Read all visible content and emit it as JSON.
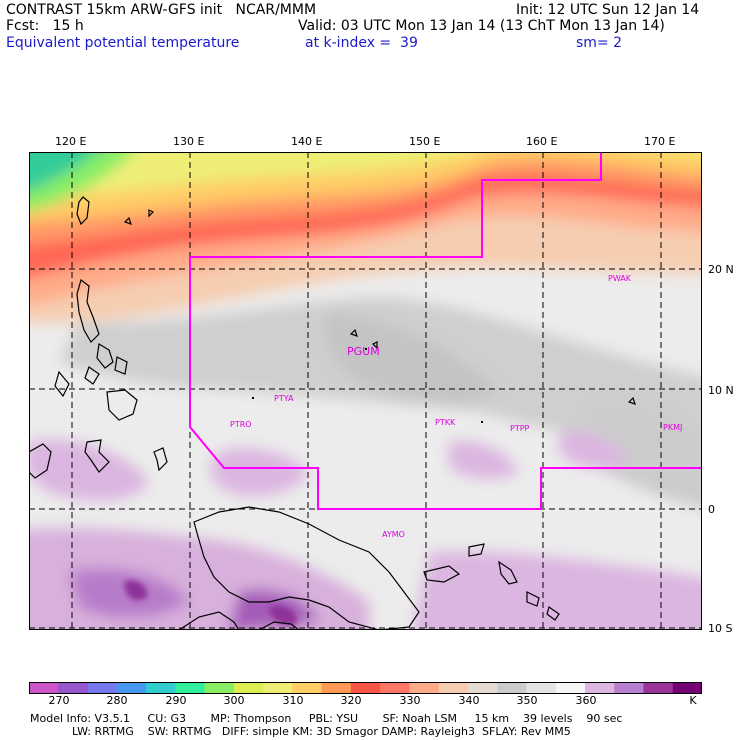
{
  "header": {
    "left1": "CONTRAST 15km ARW-GFS init   NCAR/MMM",
    "right1": "Init: 12 UTC Sun 12 Jan 14",
    "left2": "Fcst:   15 h",
    "right2": "Valid: 03 UTC Mon 13 Jan 14 (13 ChT Mon 13 Jan 14)",
    "field": "Equivalent potential temperature",
    "level": "at k-index =  39",
    "smooth": "sm= 2"
  },
  "lon_ticks": [
    "120 E",
    "130 E",
    "140 E",
    "150 E",
    "160 E",
    "170 E"
  ],
  "lat_ticks": [
    "20 N",
    "10 N",
    "0",
    "10 S"
  ],
  "stations": [
    "PWAK",
    "PGUM",
    "PTYA",
    "PTRO",
    "PTKK",
    "PTPP",
    "PKMJ",
    "AYMO"
  ],
  "colorbar": {
    "labels": [
      "270",
      "280",
      "290",
      "300",
      "310",
      "320",
      "330",
      "340",
      "350",
      "360"
    ],
    "unit": "K",
    "colors": [
      "#cc55cc",
      "#9955cc",
      "#7777ee",
      "#4499ee",
      "#33cccc",
      "#33ee99",
      "#88ee66",
      "#ddee55",
      "#eeee77",
      "#ffcc66",
      "#ff9955",
      "#ff5544",
      "#ff7766",
      "#ffaa88",
      "#f6cdb0",
      "#e6dcd0",
      "#cccccc",
      "#e4e4e4",
      "#f6f6f6",
      "#dbb6e0",
      "#b87fcf",
      "#993399",
      "#770077"
    ]
  },
  "model_info": {
    "line1": "Model Info: V3.5.1     CU: G3       MP: Thompson     PBL: YSU       SF: Noah LSM     15 km    39 levels    90 sec",
    "line2": "            LW: RRTMG    SW: RRTMG   DIFF: simple KM: 3D Smagor DAMP: Rayleigh3  SFLAY: Rev MM5"
  }
}
